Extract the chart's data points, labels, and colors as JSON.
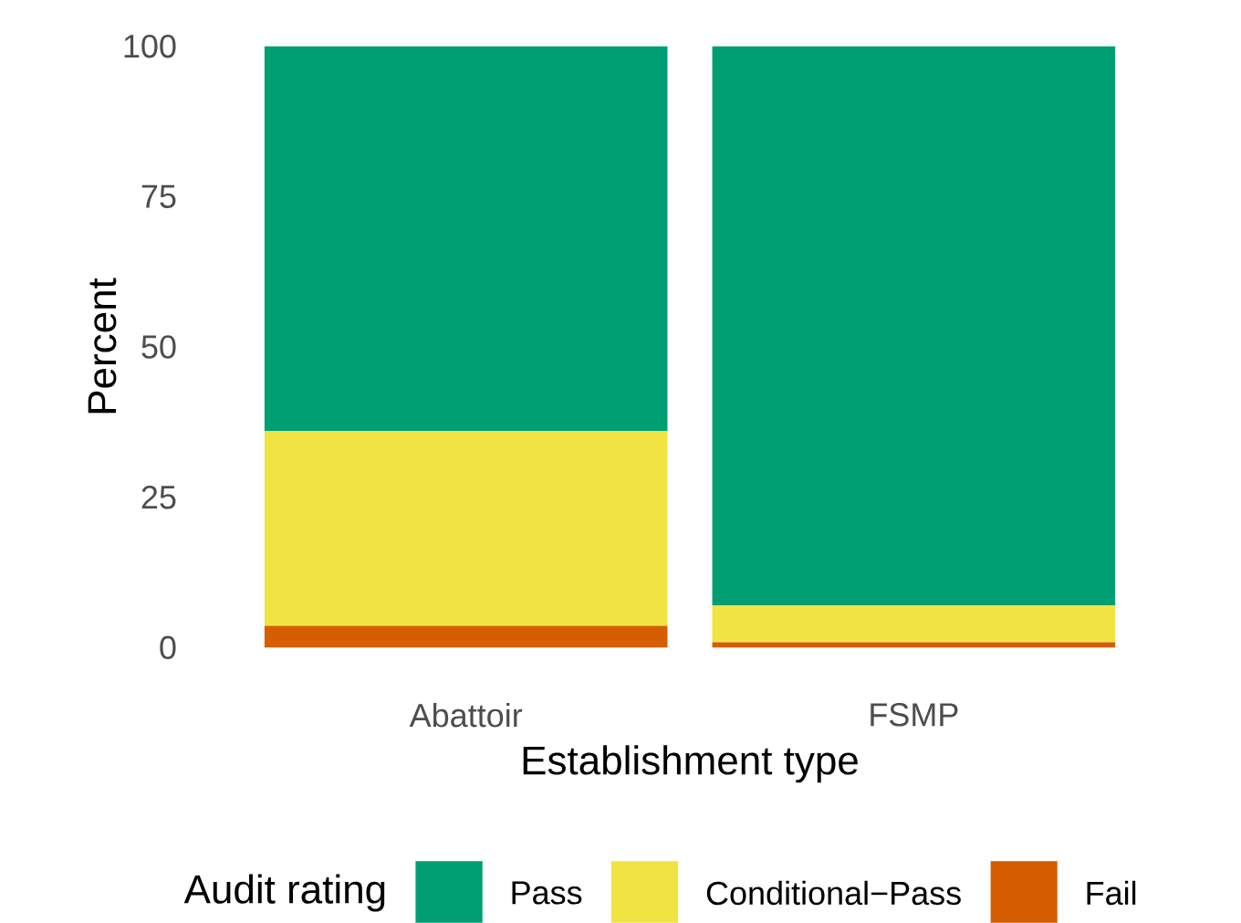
{
  "chart_data": {
    "type": "bar",
    "stacked": true,
    "xlabel": "Establishment type",
    "ylabel": "Percent",
    "legend_title": "Audit rating",
    "categories": [
      "Abattoir",
      "FSMP"
    ],
    "series": [
      {
        "name": "Fail",
        "color": "#d55e00",
        "values": [
          3.6,
          0.9
        ]
      },
      {
        "name": "Conditional−Pass",
        "color": "#f0e442",
        "values": [
          32.4,
          6.1
        ]
      },
      {
        "name": "Pass",
        "color": "#009e73",
        "values": [
          64.0,
          93.0
        ]
      }
    ],
    "ylim": [
      0,
      100
    ],
    "yticks": [
      0,
      25,
      50,
      75,
      100
    ],
    "legend": "bottom"
  }
}
